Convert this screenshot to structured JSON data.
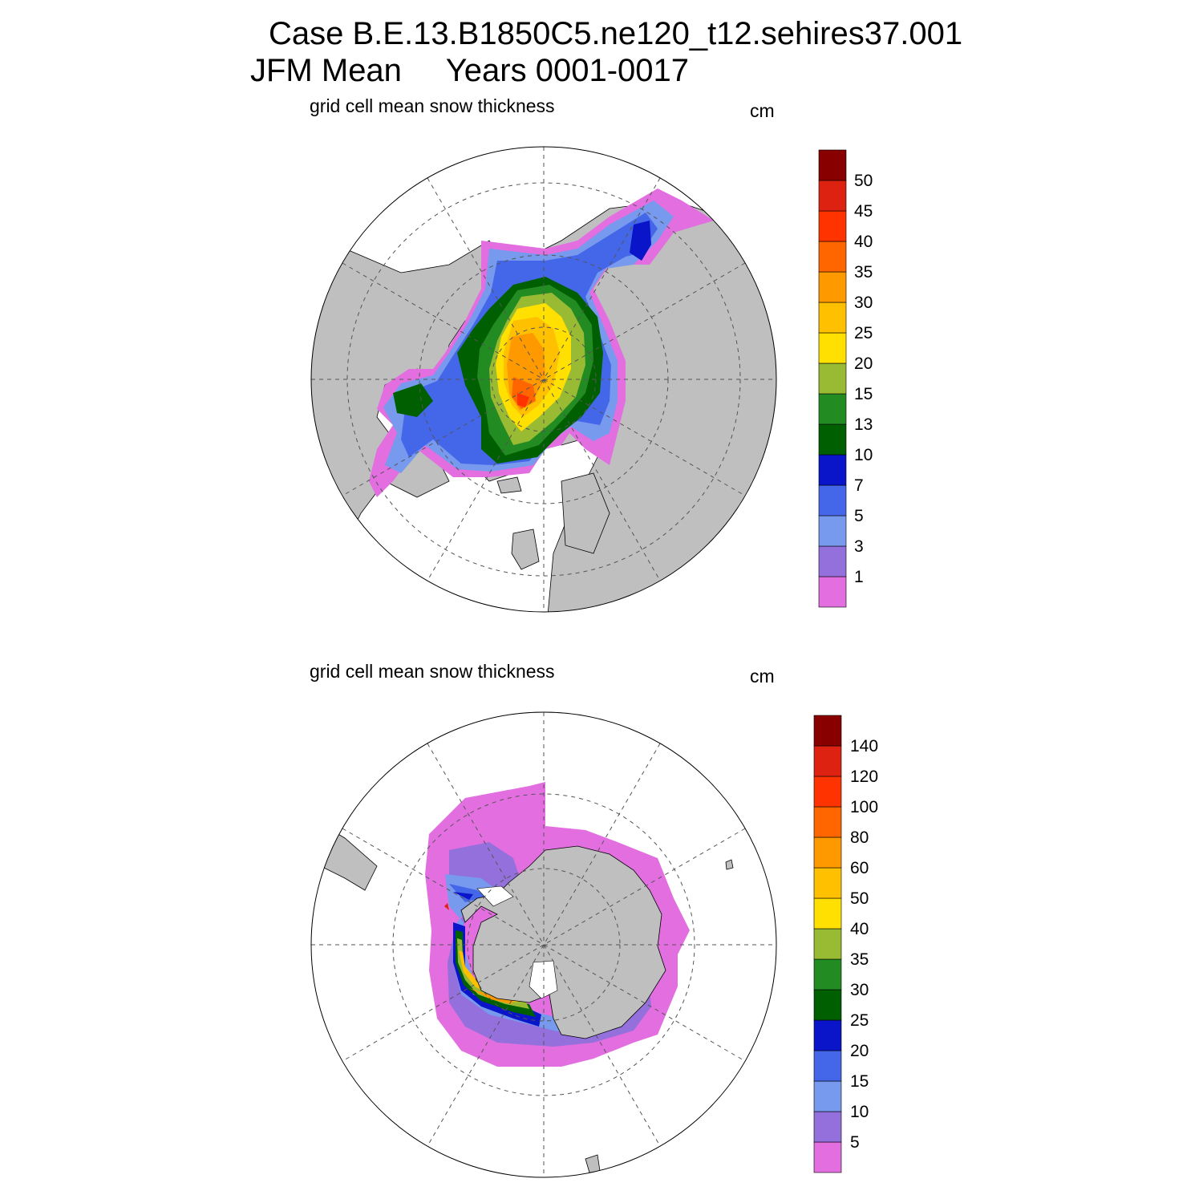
{
  "figure": {
    "title_line1": "Case B.E.13.B1850C5.ne120_t12.sehires37.001",
    "title_line2": "JFM Mean     Years 0001-0017"
  },
  "panels": [
    {
      "id": "north",
      "hemisphere": "Arctic (north polar stereographic)",
      "variable_label": "grid cell mean snow thickness",
      "units_label": "cm",
      "colorbar": {
        "labels": [
          "1",
          "3",
          "5",
          "7",
          "10",
          "13",
          "15",
          "20",
          "25",
          "30",
          "35",
          "40",
          "45",
          "50"
        ],
        "colors": [
          "#e26ee0",
          "#9370db",
          "#7799ee",
          "#4466e8",
          "#0a14c8",
          "#005f00",
          "#228b22",
          "#99bb33",
          "#ffe000",
          "#ffc000",
          "#ff9900",
          "#ff6600",
          "#ff3300",
          "#dd2211",
          "#880000"
        ]
      }
    },
    {
      "id": "south",
      "hemisphere": "Antarctic (south polar stereographic)",
      "variable_label": "grid cell mean snow thickness",
      "units_label": "cm",
      "colorbar": {
        "labels": [
          "5",
          "10",
          "15",
          "20",
          "25",
          "30",
          "35",
          "40",
          "50",
          "60",
          "80",
          "100",
          "120",
          "140"
        ],
        "colors": [
          "#e26ee0",
          "#9370db",
          "#7799ee",
          "#4466e8",
          "#0a14c8",
          "#005f00",
          "#228b22",
          "#99bb33",
          "#ffe000",
          "#ffc000",
          "#ff9900",
          "#ff6600",
          "#ff3300",
          "#dd2211",
          "#880000"
        ]
      }
    }
  ],
  "colors": {
    "land": "#bfbfbf",
    "ocean": "#ffffff",
    "grid": "#555555"
  }
}
